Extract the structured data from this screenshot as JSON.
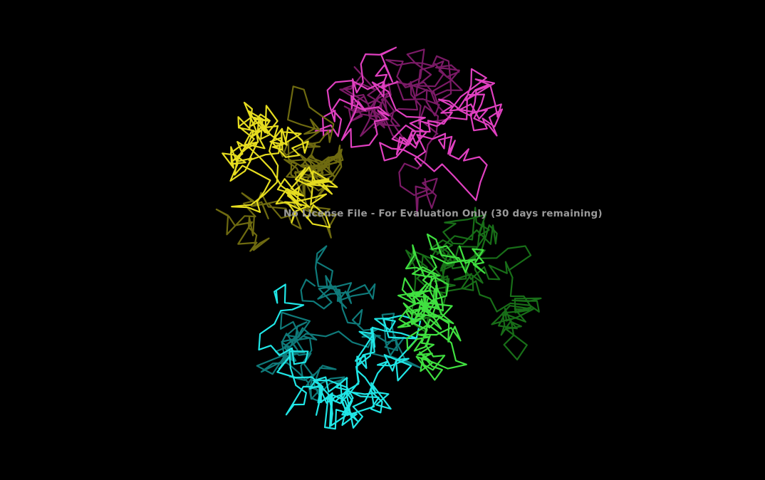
{
  "watermark": {
    "text": "No License File - For Evaluation Only (30 days remaining)"
  },
  "viewer": {
    "background": "#000000"
  },
  "chains": [
    {
      "id": "A",
      "color": "#e040c0",
      "dark": "#7a1a66"
    },
    {
      "id": "B",
      "color": "#e6dd20",
      "dark": "#6e6a10"
    },
    {
      "id": "C",
      "color": "#20e6e6",
      "dark": "#0f7a7a"
    },
    {
      "id": "D",
      "color": "#40e040",
      "dark": "#186e18"
    }
  ]
}
